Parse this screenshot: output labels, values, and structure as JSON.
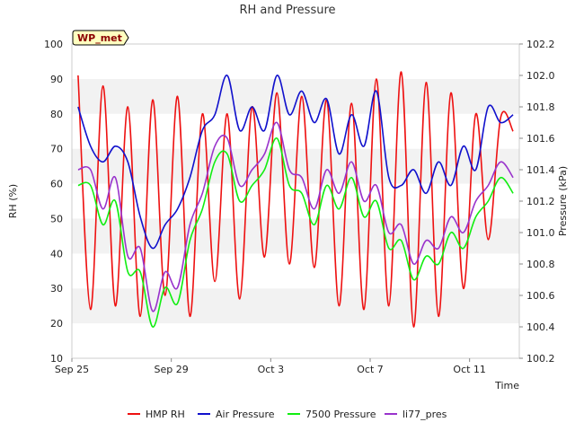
{
  "chart_data": {
    "type": "line",
    "title": "RH and Pressure",
    "badge": "WP_met",
    "xlabel": "Time",
    "ylabel": "RH (%)",
    "y2label": "Pressure (kPa)",
    "xlim": [
      "2023-09-25",
      "2023-10-13"
    ],
    "ylim": [
      10,
      100
    ],
    "y2lim": [
      100.2,
      102.2
    ],
    "x_ticks": [
      {
        "date": "2023-09-25",
        "label": "Sep 25"
      },
      {
        "date": "2023-09-29",
        "label": "Sep 29"
      },
      {
        "date": "2023-10-03",
        "label": "Oct 3"
      },
      {
        "date": "2023-10-07",
        "label": "Oct 7"
      },
      {
        "date": "2023-10-11",
        "label": "Oct 11"
      }
    ],
    "y_ticks": [
      10,
      20,
      30,
      40,
      50,
      60,
      70,
      80,
      90,
      100
    ],
    "y2_ticks": [
      100.2,
      100.4,
      100.6,
      100.8,
      101.0,
      101.2,
      101.4,
      101.6,
      101.8,
      102.0,
      102.2
    ],
    "grid": "horizontal bands",
    "legend_position": "bottom",
    "x": [
      "2023-09-25T06:00",
      "2023-09-25T18:00",
      "2023-09-26T06:00",
      "2023-09-26T18:00",
      "2023-09-27T06:00",
      "2023-09-27T18:00",
      "2023-09-28T06:00",
      "2023-09-28T18:00",
      "2023-09-29T06:00",
      "2023-09-29T18:00",
      "2023-09-30T06:00",
      "2023-09-30T18:00",
      "2023-10-01T06:00",
      "2023-10-01T18:00",
      "2023-10-02T06:00",
      "2023-10-02T18:00",
      "2023-10-03T06:00",
      "2023-10-03T18:00",
      "2023-10-04T06:00",
      "2023-10-04T18:00",
      "2023-10-05T06:00",
      "2023-10-05T18:00",
      "2023-10-06T06:00",
      "2023-10-06T18:00",
      "2023-10-07T06:00",
      "2023-10-07T18:00",
      "2023-10-08T06:00",
      "2023-10-08T18:00",
      "2023-10-09T06:00",
      "2023-10-09T18:00",
      "2023-10-10T06:00",
      "2023-10-10T18:00",
      "2023-10-11T06:00",
      "2023-10-11T18:00",
      "2023-10-12T06:00",
      "2023-10-12T18:00"
    ],
    "series": [
      {
        "name": "HMP RH",
        "color": "#ee1111",
        "axis": "left",
        "values": [
          91,
          24,
          88,
          25,
          82,
          22,
          84,
          28,
          85,
          22,
          80,
          32,
          80,
          27,
          82,
          39,
          86,
          37,
          85,
          36,
          84,
          25,
          83,
          24,
          90,
          25,
          92,
          19,
          89,
          22,
          86,
          30,
          80,
          44,
          79,
          75
        ]
      },
      {
        "name": "Air Pressure",
        "color": "#1111cc",
        "axis": "right",
        "values": [
          101.8,
          101.55,
          101.45,
          101.55,
          101.45,
          101.1,
          100.9,
          101.05,
          101.15,
          101.35,
          101.65,
          101.75,
          102.0,
          101.65,
          101.8,
          101.65,
          102.0,
          101.75,
          101.9,
          101.7,
          101.85,
          101.5,
          101.75,
          101.55,
          101.9,
          101.35,
          101.3,
          101.4,
          101.25,
          101.45,
          101.3,
          101.55,
          101.4,
          101.8,
          101.7,
          101.75
        ]
      },
      {
        "name": "7500 Pressure",
        "color": "#11ee11",
        "axis": "right",
        "values": [
          101.3,
          101.3,
          101.05,
          101.2,
          100.75,
          100.75,
          100.4,
          100.65,
          100.55,
          100.95,
          101.15,
          101.45,
          101.5,
          101.2,
          101.3,
          101.4,
          101.6,
          101.3,
          101.25,
          101.05,
          101.3,
          101.15,
          101.35,
          101.1,
          101.2,
          100.9,
          100.95,
          100.7,
          100.85,
          100.8,
          101.0,
          100.9,
          101.1,
          101.2,
          101.35,
          101.25
        ]
      },
      {
        "name": "li77_pres",
        "color": "#9933cc",
        "axis": "right",
        "values": [
          101.4,
          101.4,
          101.15,
          101.35,
          100.85,
          100.9,
          100.5,
          100.75,
          100.65,
          101.05,
          101.25,
          101.55,
          101.6,
          101.3,
          101.4,
          101.5,
          101.7,
          101.4,
          101.35,
          101.15,
          101.4,
          101.25,
          101.45,
          101.2,
          101.3,
          101.0,
          101.05,
          100.8,
          100.95,
          100.9,
          101.1,
          101.0,
          101.2,
          101.3,
          101.45,
          101.35
        ]
      }
    ]
  }
}
